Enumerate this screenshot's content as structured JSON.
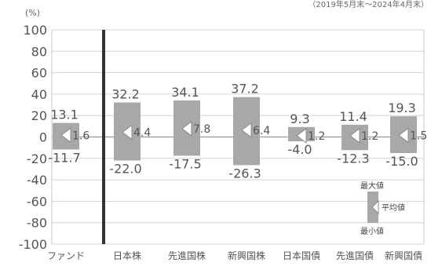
{
  "header": {
    "unit": "(%)",
    "period": "（2019年5月末～2024年4月末）"
  },
  "legend": {
    "max_label": "最大値",
    "avg_label": "平均値",
    "min_label": "最小値"
  },
  "chart_data": {
    "type": "range-bar",
    "unit": "(%)",
    "ylim": [
      -100,
      100
    ],
    "yticks": [
      100,
      80,
      60,
      40,
      20,
      0,
      -20,
      -40,
      -60,
      -80,
      -100
    ],
    "grid": true,
    "legend_position": "bottom-right",
    "categories": [
      "ファンド",
      "日本株",
      "先進国株",
      "新興国株",
      "日本国債",
      "先進国債",
      "新興国債"
    ],
    "series": [
      {
        "name": "最大値",
        "values": [
          13.1,
          32.2,
          34.1,
          37.2,
          9.3,
          11.4,
          19.3
        ]
      },
      {
        "name": "平均値",
        "values": [
          1.6,
          4.4,
          7.8,
          6.4,
          1.2,
          1.2,
          1.5
        ]
      },
      {
        "name": "最小値",
        "values": [
          -11.7,
          -22.0,
          -17.5,
          -26.3,
          -4.0,
          -12.3,
          -15.0
        ]
      }
    ],
    "display": {
      "max": [
        "13.1",
        "32.2",
        "34.1",
        "37.2",
        "9.3",
        "11.4",
        "19.3"
      ],
      "avg": [
        "1.6",
        "4.4",
        "7.8",
        "6.4",
        "1.2",
        "1.2",
        "1.5"
      ],
      "min": [
        "-11.7",
        "-22.0",
        "-17.5",
        "-26.3",
        "-4.0",
        "-12.3",
        "-15.0"
      ]
    }
  },
  "colors": {
    "bar": "#a8a8a8",
    "bar_dark": "#8a8a8a",
    "divider": "#333333",
    "grid": "#d4d4d4",
    "axis": "#c8c8c8"
  }
}
